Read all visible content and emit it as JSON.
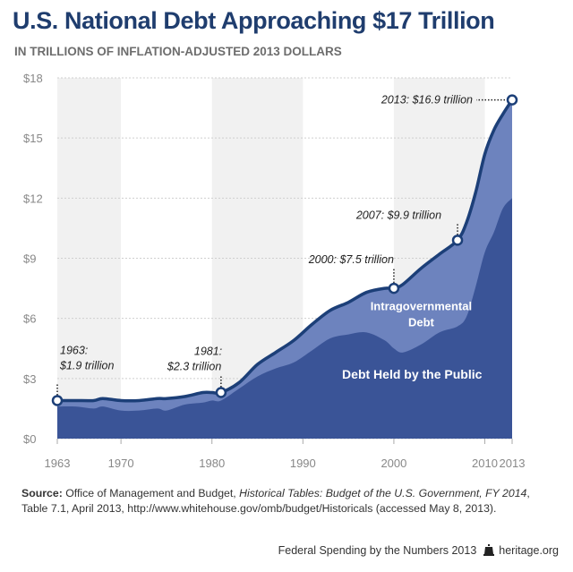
{
  "header": {
    "title": "U.S. National Debt Approaching $17 Trillion",
    "subtitle": "IN TRILLIONS OF INFLATION-ADJUSTED 2013 DOLLARS"
  },
  "colors": {
    "title": "#1f3d6e",
    "public_debt": "#3a5497",
    "intragov_debt": "#6d83be",
    "line": "#1c3f78",
    "stripe": "#f1f1f1"
  },
  "chart_data": {
    "type": "area",
    "title": "U.S. National Debt Approaching $17 Trillion",
    "subtitle": "IN TRILLIONS OF INFLATION-ADJUSTED 2013 DOLLARS",
    "xlabel": "",
    "ylabel": "",
    "xlim": [
      1963,
      2013
    ],
    "ylim": [
      0,
      18
    ],
    "x_ticks": [
      1963,
      1970,
      1980,
      1990,
      2000,
      2010,
      2013
    ],
    "x_tick_labels": [
      "1963",
      "1970",
      "1980",
      "1990",
      "2000",
      "2010",
      "2013"
    ],
    "y_ticks": [
      0,
      3,
      6,
      9,
      12,
      15,
      18
    ],
    "y_tick_labels": [
      "$0",
      "$3",
      "$6",
      "$9",
      "$12",
      "$15",
      "$18"
    ],
    "stacked": true,
    "x": [
      1963,
      1965,
      1967,
      1968,
      1970,
      1972,
      1974,
      1975,
      1977,
      1979,
      1980,
      1981,
      1983,
      1985,
      1987,
      1989,
      1991,
      1993,
      1995,
      1997,
      1999,
      2000,
      2001,
      2003,
      2005,
      2007,
      2008,
      2009,
      2010,
      2011,
      2012,
      2013
    ],
    "series": [
      {
        "name": "Debt Held by the Public",
        "values": [
          1.6,
          1.6,
          1.5,
          1.6,
          1.4,
          1.4,
          1.5,
          1.4,
          1.7,
          1.8,
          1.9,
          1.9,
          2.5,
          3.1,
          3.5,
          3.8,
          4.4,
          5.0,
          5.2,
          5.3,
          4.9,
          4.5,
          4.3,
          4.7,
          5.3,
          5.6,
          6.1,
          7.6,
          9.3,
          10.3,
          11.5,
          12.0
        ]
      },
      {
        "name": "Intragovernmental Debt",
        "values": [
          0.3,
          0.3,
          0.4,
          0.4,
          0.5,
          0.5,
          0.5,
          0.6,
          0.4,
          0.5,
          0.4,
          0.4,
          0.3,
          0.6,
          0.8,
          1.1,
          1.3,
          1.4,
          1.6,
          2.0,
          2.6,
          3.0,
          3.4,
          3.8,
          3.9,
          4.3,
          4.7,
          4.7,
          4.9,
          5.1,
          4.7,
          4.9
        ]
      }
    ],
    "total": [
      1.9,
      1.9,
      1.9,
      2.0,
      1.9,
      1.9,
      2.0,
      2.0,
      2.1,
      2.3,
      2.3,
      2.3,
      2.8,
      3.7,
      4.3,
      4.9,
      5.7,
      6.4,
      6.8,
      7.3,
      7.5,
      7.5,
      7.7,
      8.5,
      9.2,
      9.9,
      10.8,
      12.3,
      14.2,
      15.4,
      16.2,
      16.9
    ],
    "grid": false,
    "background_stripes": [
      [
        1963,
        1970
      ],
      [
        1980,
        1990
      ],
      [
        2000,
        2010
      ]
    ],
    "series_labels": [
      {
        "text": "Intragovernmental",
        "text2": "Debt",
        "x": 2003,
        "y": 6.4
      },
      {
        "text": "Debt Held by the Public",
        "x": 2002,
        "y": 3.0
      }
    ],
    "annotations": [
      {
        "x": 1963,
        "y": 1.9,
        "line1": "1963:",
        "line2": "$1.9 trillion"
      },
      {
        "x": 1981,
        "y": 2.3,
        "line1": "1981:",
        "line2": "$2.3 trillion"
      },
      {
        "x": 2000,
        "y": 7.5,
        "line1": "2000: $7.5 trillion"
      },
      {
        "x": 2007,
        "y": 9.9,
        "line1": "2007: $9.9 trillion"
      },
      {
        "x": 2013,
        "y": 16.9,
        "line1": "2013: $16.9 trillion"
      }
    ]
  },
  "source": {
    "label": "Source:",
    "text_1": " Office of Management and Budget, ",
    "italic": "Historical Tables: Budget of the U.S. Government, FY 2014",
    "text_2": ", Table 7.1, April 2013, http://www.whitehouse.gov/omb/budget/Historicals (accessed May 8, 2013)."
  },
  "footer": {
    "left": "Federal Spending by the Numbers 2013",
    "right": "heritage.org"
  }
}
